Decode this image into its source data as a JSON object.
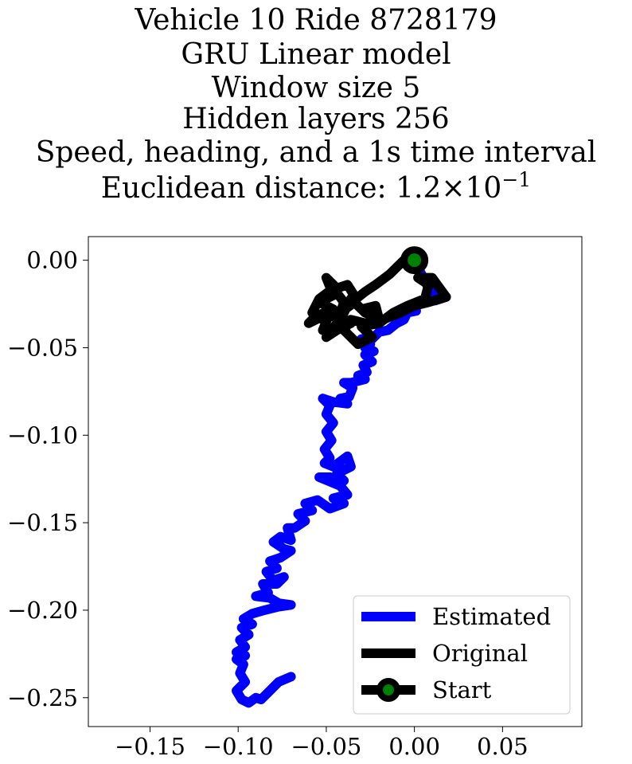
{
  "chart_data": {
    "type": "line",
    "title_lines": [
      "Vehicle 10 Ride 8728179",
      "GRU Linear model",
      "Window size 5",
      "Hidden layers 256",
      "Speed, heading, and a 1s time interval"
    ],
    "title_metric": {
      "prefix": "Euclidean distance: 1.2",
      "times": "×",
      "base": "10",
      "exponent": "−1"
    },
    "xlim": [
      -0.185,
      0.095
    ],
    "ylim": [
      -0.2665,
      0.0135
    ],
    "xticks": [
      -0.15,
      -0.1,
      -0.05,
      0.0,
      0.05
    ],
    "xtick_labels": [
      "−0.15",
      "−0.10",
      "−0.05",
      "0.00",
      "0.05"
    ],
    "yticks": [
      0.0,
      -0.05,
      -0.1,
      -0.15,
      -0.2,
      -0.25
    ],
    "ytick_labels": [
      "0.00",
      "−0.05",
      "−0.10",
      "−0.15",
      "−0.20",
      "−0.25"
    ],
    "legend_position": "lower-right",
    "series": [
      {
        "name": "Estimated",
        "color": "#0000ff",
        "points": [
          [
            0.0,
            0.0
          ],
          [
            0.004,
            -0.008
          ],
          [
            0.008,
            -0.016
          ],
          [
            0.012,
            -0.021
          ],
          [
            0.018,
            -0.021
          ],
          [
            0.012,
            -0.023
          ],
          [
            0.004,
            -0.023
          ],
          [
            -0.001,
            -0.025
          ],
          [
            0.001,
            -0.029
          ],
          [
            -0.004,
            -0.03
          ],
          [
            -0.006,
            -0.034
          ],
          [
            -0.01,
            -0.036
          ],
          [
            -0.015,
            -0.04
          ],
          [
            -0.02,
            -0.041
          ],
          [
            -0.024,
            -0.045
          ],
          [
            -0.03,
            -0.045
          ],
          [
            -0.025,
            -0.048
          ],
          [
            -0.028,
            -0.05
          ],
          [
            -0.023,
            -0.052
          ],
          [
            -0.028,
            -0.054
          ],
          [
            -0.024,
            -0.058
          ],
          [
            -0.029,
            -0.06
          ],
          [
            -0.027,
            -0.064
          ],
          [
            -0.032,
            -0.066
          ],
          [
            -0.028,
            -0.068
          ],
          [
            -0.036,
            -0.07
          ],
          [
            -0.04,
            -0.07
          ],
          [
            -0.035,
            -0.073
          ],
          [
            -0.037,
            -0.078
          ],
          [
            -0.042,
            -0.079
          ],
          [
            -0.038,
            -0.082
          ],
          [
            -0.046,
            -0.081
          ],
          [
            -0.052,
            -0.079
          ],
          [
            -0.048,
            -0.083
          ],
          [
            -0.05,
            -0.088
          ],
          [
            -0.046,
            -0.093
          ],
          [
            -0.05,
            -0.098
          ],
          [
            -0.047,
            -0.103
          ],
          [
            -0.051,
            -0.108
          ],
          [
            -0.048,
            -0.113
          ],
          [
            -0.051,
            -0.116
          ],
          [
            -0.046,
            -0.118
          ],
          [
            -0.038,
            -0.112
          ],
          [
            -0.036,
            -0.118
          ],
          [
            -0.044,
            -0.122
          ],
          [
            -0.04,
            -0.126
          ],
          [
            -0.048,
            -0.124
          ],
          [
            -0.054,
            -0.124
          ],
          [
            -0.042,
            -0.129
          ],
          [
            -0.038,
            -0.134
          ],
          [
            -0.046,
            -0.136
          ],
          [
            -0.04,
            -0.139
          ],
          [
            -0.048,
            -0.142
          ],
          [
            -0.055,
            -0.137
          ],
          [
            -0.062,
            -0.139
          ],
          [
            -0.058,
            -0.143
          ],
          [
            -0.066,
            -0.145
          ],
          [
            -0.062,
            -0.149
          ],
          [
            -0.068,
            -0.153
          ],
          [
            -0.072,
            -0.153
          ],
          [
            -0.07,
            -0.16
          ],
          [
            -0.076,
            -0.158
          ],
          [
            -0.08,
            -0.161
          ],
          [
            -0.074,
            -0.165
          ],
          [
            -0.07,
            -0.166
          ],
          [
            -0.076,
            -0.17
          ],
          [
            -0.082,
            -0.172
          ],
          [
            -0.078,
            -0.176
          ],
          [
            -0.084,
            -0.178
          ],
          [
            -0.08,
            -0.183
          ],
          [
            -0.074,
            -0.181
          ],
          [
            -0.078,
            -0.185
          ],
          [
            -0.086,
            -0.185
          ],
          [
            -0.083,
            -0.19
          ],
          [
            -0.09,
            -0.192
          ],
          [
            -0.082,
            -0.193
          ],
          [
            -0.077,
            -0.196
          ],
          [
            -0.07,
            -0.197
          ],
          [
            -0.077,
            -0.198
          ],
          [
            -0.085,
            -0.2
          ],
          [
            -0.092,
            -0.202
          ],
          [
            -0.097,
            -0.205
          ],
          [
            -0.092,
            -0.208
          ],
          [
            -0.098,
            -0.21
          ],
          [
            -0.094,
            -0.214
          ],
          [
            -0.099,
            -0.217
          ],
          [
            -0.096,
            -0.221
          ],
          [
            -0.101,
            -0.224
          ],
          [
            -0.096,
            -0.226
          ],
          [
            -0.101,
            -0.228
          ],
          [
            -0.097,
            -0.231
          ],
          [
            -0.099,
            -0.236
          ],
          [
            -0.096,
            -0.241
          ],
          [
            -0.101,
            -0.246
          ],
          [
            -0.098,
            -0.251
          ],
          [
            -0.094,
            -0.253
          ],
          [
            -0.09,
            -0.25
          ],
          [
            -0.087,
            -0.251
          ],
          [
            -0.082,
            -0.246
          ],
          [
            -0.077,
            -0.241
          ],
          [
            -0.07,
            -0.238
          ]
        ]
      },
      {
        "name": "Original",
        "color": "#000000",
        "points": [
          [
            0.0,
            0.0
          ],
          [
            -0.006,
            0.0
          ],
          [
            -0.014,
            -0.008
          ],
          [
            -0.022,
            -0.014
          ],
          [
            -0.028,
            -0.018
          ],
          [
            -0.033,
            -0.022
          ],
          [
            -0.038,
            -0.014
          ],
          [
            -0.044,
            -0.016
          ],
          [
            -0.05,
            -0.01
          ],
          [
            -0.046,
            -0.02
          ],
          [
            -0.054,
            -0.024
          ],
          [
            -0.046,
            -0.028
          ],
          [
            -0.056,
            -0.032
          ],
          [
            -0.06,
            -0.036
          ],
          [
            -0.048,
            -0.03
          ],
          [
            -0.052,
            -0.04
          ],
          [
            -0.044,
            -0.04
          ],
          [
            -0.04,
            -0.03
          ],
          [
            -0.036,
            -0.022
          ],
          [
            -0.03,
            -0.028
          ],
          [
            -0.022,
            -0.026
          ],
          [
            -0.02,
            -0.034
          ],
          [
            -0.028,
            -0.036
          ],
          [
            -0.036,
            -0.034
          ],
          [
            -0.04,
            -0.04
          ],
          [
            -0.032,
            -0.048
          ],
          [
            -0.024,
            -0.044
          ],
          [
            -0.03,
            -0.038
          ],
          [
            -0.02,
            -0.036
          ],
          [
            -0.012,
            -0.03
          ],
          [
            -0.004,
            -0.026
          ],
          [
            0.006,
            -0.022
          ],
          [
            0.008,
            -0.014
          ],
          [
            0.002,
            -0.01
          ],
          [
            0.01,
            -0.01
          ],
          [
            0.018,
            -0.021
          ],
          [
            0.008,
            -0.024
          ],
          [
            0.0,
            -0.026
          ],
          [
            -0.008,
            -0.03
          ],
          [
            -0.018,
            -0.034
          ],
          [
            -0.028,
            -0.03
          ],
          [
            -0.034,
            -0.024
          ],
          [
            -0.042,
            -0.03
          ],
          [
            -0.052,
            -0.034
          ],
          [
            -0.058,
            -0.03
          ],
          [
            -0.054,
            -0.022
          ],
          [
            -0.046,
            -0.016
          ],
          [
            -0.04,
            -0.024
          ],
          [
            -0.044,
            -0.036
          ],
          [
            -0.05,
            -0.044
          ],
          [
            -0.044,
            -0.04
          ],
          [
            -0.036,
            -0.036
          ]
        ]
      }
    ],
    "start_point": {
      "name": "Start",
      "x": 0.0,
      "y": 0.0,
      "color": "#008000"
    }
  }
}
